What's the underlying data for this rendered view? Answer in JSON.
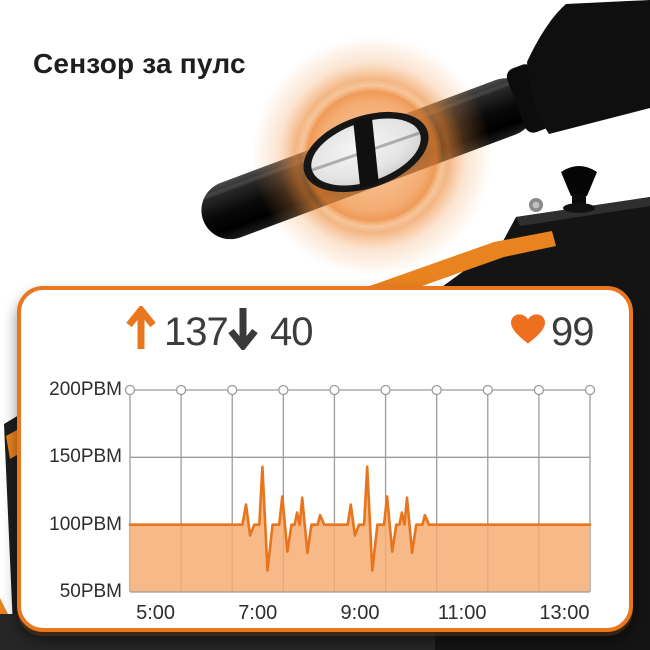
{
  "title": "Сензор за пулс",
  "stats": {
    "max": {
      "icon": "arrow-up-icon",
      "value": "137"
    },
    "min": {
      "icon": "arrow-down-icon",
      "value": "40"
    },
    "current": {
      "icon": "heart-icon",
      "value": "99"
    }
  },
  "colors": {
    "accent": "#E8771F",
    "line": "#E8741C",
    "fill": "#F6AD73",
    "grid": "#9C9C9C",
    "heart": "#EE6F1E",
    "arrow_down": "#3A3A3A",
    "glow": "#F09A52",
    "card_bg": "#FFFFFF"
  },
  "chart_data": {
    "type": "area",
    "title": "",
    "xlabel": "",
    "ylabel": "",
    "x_axis": {
      "tick_labels": [
        "5:00",
        "7:00",
        "9:00",
        "11:00",
        "13:00"
      ],
      "tick_hours": [
        5,
        7,
        9,
        11,
        13
      ],
      "range": [
        4.5,
        13.5
      ]
    },
    "y_axis": {
      "tick_labels": [
        "200PBM",
        "150PBM",
        "100PBM",
        "50PBM"
      ],
      "tick_values": [
        200,
        150,
        100,
        50
      ],
      "range": [
        50,
        200
      ]
    },
    "grid": {
      "vertical_hours": [
        4.5,
        5.5,
        6.5,
        7.5,
        8.5,
        9.5,
        10.5,
        11.5,
        12.5,
        13.5
      ],
      "horizontal_values": [
        200,
        150,
        50
      ],
      "node_circles_at": 200
    },
    "baseline_pbm": 100,
    "legend": null,
    "series": [
      {
        "name": "heart_rate_pbm",
        "points": [
          [
            4.5,
            100
          ],
          [
            6.7,
            100
          ],
          [
            6.77,
            115
          ],
          [
            6.85,
            92
          ],
          [
            6.93,
            100
          ],
          [
            7.03,
            100
          ],
          [
            7.09,
            143
          ],
          [
            7.19,
            66
          ],
          [
            7.29,
            100
          ],
          [
            7.42,
            100
          ],
          [
            7.48,
            121
          ],
          [
            7.58,
            80
          ],
          [
            7.66,
            100
          ],
          [
            7.72,
            100
          ],
          [
            7.77,
            109
          ],
          [
            7.82,
            100
          ],
          [
            7.87,
            120
          ],
          [
            7.97,
            79
          ],
          [
            8.05,
            100
          ],
          [
            8.17,
            100
          ],
          [
            8.22,
            107
          ],
          [
            8.3,
            100
          ],
          [
            8.76,
            100
          ],
          [
            8.82,
            115
          ],
          [
            8.9,
            92
          ],
          [
            8.98,
            100
          ],
          [
            9.08,
            100
          ],
          [
            9.14,
            143
          ],
          [
            9.24,
            66
          ],
          [
            9.34,
            100
          ],
          [
            9.47,
            100
          ],
          [
            9.53,
            121
          ],
          [
            9.63,
            80
          ],
          [
            9.71,
            100
          ],
          [
            9.77,
            100
          ],
          [
            9.82,
            109
          ],
          [
            9.87,
            100
          ],
          [
            9.92,
            120
          ],
          [
            10.02,
            79
          ],
          [
            10.1,
            100
          ],
          [
            10.22,
            100
          ],
          [
            10.27,
            107
          ],
          [
            10.35,
            100
          ],
          [
            13.5,
            100
          ]
        ]
      }
    ]
  }
}
